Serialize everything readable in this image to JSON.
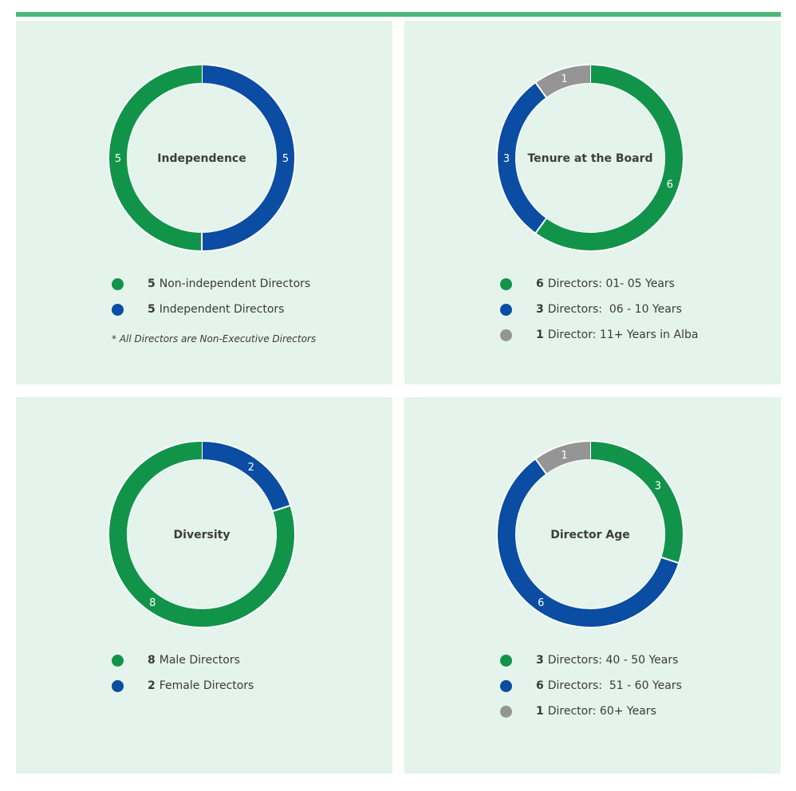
{
  "colors": {
    "top_bar": "#4cb87b",
    "panel_bg": "#e4f4ec",
    "ring_bg": "#ffffff"
  },
  "chart_data": [
    {
      "type": "pie",
      "title": "Independence",
      "start_angle_deg": 0,
      "series": [
        {
          "name": "Non-independent Directors",
          "count_label": "5",
          "value": 5,
          "color": "#11944a"
        },
        {
          "name": "Independent Directors",
          "count_label": "5",
          "value": 5,
          "color": "#0a4da2"
        }
      ],
      "segment_order": [
        1,
        0
      ],
      "legend": [
        {
          "count": "5",
          "label": "Non-independent Directors",
          "color": "#11944a"
        },
        {
          "count": "5",
          "label": "Independent Directors",
          "color": "#0a4da2"
        }
      ],
      "footnote": "*  All Directors are Non-Executive Directors"
    },
    {
      "type": "pie",
      "title": "Tenure at the Board",
      "start_angle_deg": 0,
      "series": [
        {
          "name": "Directors: 01- 05 Years",
          "count_label": "6",
          "value": 6,
          "color": "#11944a"
        },
        {
          "name": "Directors:  06 - 10 Years",
          "count_label": "3",
          "value": 3,
          "color": "#0a4da2"
        },
        {
          "name": "Director: 11+ Years in Alba",
          "count_label": "1",
          "value": 1,
          "color": "#959595"
        }
      ],
      "segment_order": [
        0,
        1,
        2
      ],
      "legend": [
        {
          "count": "6",
          "label": "Directors: 01- 05 Years",
          "color": "#11944a"
        },
        {
          "count": "3",
          "label": "Directors:  06 - 10 Years",
          "color": "#0a4da2"
        },
        {
          "count": "1",
          "label": "Director: 11+ Years in Alba",
          "color": "#959595"
        }
      ],
      "footnote": ""
    },
    {
      "type": "pie",
      "title": "Diversity",
      "start_angle_deg": 0,
      "series": [
        {
          "name": "Male Directors",
          "count_label": "8",
          "value": 8,
          "color": "#11944a"
        },
        {
          "name": "Female Directors",
          "count_label": "2",
          "value": 2,
          "color": "#0a4da2"
        }
      ],
      "segment_order": [
        1,
        0
      ],
      "legend": [
        {
          "count": "8",
          "label": "Male Directors",
          "color": "#11944a"
        },
        {
          "count": "2",
          "label": "Female Directors",
          "color": "#0a4da2"
        }
      ],
      "footnote": ""
    },
    {
      "type": "pie",
      "title": "Director Age",
      "start_angle_deg": 0,
      "series": [
        {
          "name": "Directors: 40 - 50 Years",
          "count_label": "3",
          "value": 3,
          "color": "#11944a"
        },
        {
          "name": "Directors:  51 - 60 Years",
          "count_label": "6",
          "value": 6,
          "color": "#0a4da2"
        },
        {
          "name": "Director: 60+ Years",
          "count_label": "1",
          "value": 1,
          "color": "#959595"
        }
      ],
      "segment_order": [
        0,
        1,
        2
      ],
      "legend": [
        {
          "count": "3",
          "label": "Directors: 40 - 50 Years",
          "color": "#11944a"
        },
        {
          "count": "6",
          "label": "Directors:  51 - 60 Years",
          "color": "#0a4da2"
        },
        {
          "count": "1",
          "label": "Director: 60+ Years",
          "color": "#959595"
        }
      ],
      "footnote": ""
    }
  ]
}
